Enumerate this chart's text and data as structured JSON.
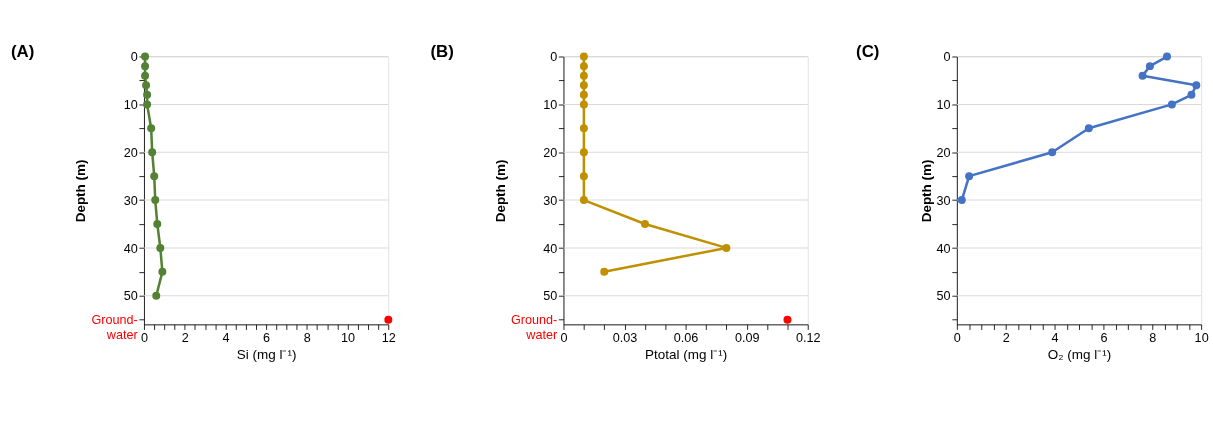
{
  "chart_data": [
    {
      "type": "line",
      "title": "(A)",
      "xlabel": "Si (mg l⁻¹)",
      "ylabel": "Depth (m)",
      "xlim": [
        0,
        12
      ],
      "xticks": [
        0,
        {
          "value": 0.5,
          "label": null
        },
        {
          "value": 1,
          "label": null
        },
        {
          "value": 1.5,
          "label": null
        },
        2,
        {
          "value": 2.5,
          "label": null
        },
        {
          "value": 3,
          "label": null
        },
        {
          "value": 3.5,
          "label": null
        },
        4,
        {
          "value": 4.5,
          "label": null
        },
        {
          "value": 5,
          "label": null
        },
        {
          "value": 5.5,
          "label": null
        },
        6,
        {
          "value": 6.5,
          "label": null
        },
        {
          "value": 7,
          "label": null
        },
        {
          "value": 7.5,
          "label": null
        },
        8,
        {
          "value": 8.5,
          "label": null
        },
        {
          "value": 9,
          "label": null
        },
        {
          "value": 9.5,
          "label": null
        },
        10,
        {
          "value": 10.5,
          "label": null
        },
        {
          "value": 11,
          "label": null
        },
        {
          "value": 11.5,
          "label": null
        },
        12
      ],
      "ylim": [
        56,
        0
      ],
      "yticks": [
        0,
        {
          "value": 5,
          "label": null
        },
        10,
        {
          "value": 15,
          "label": null
        },
        20,
        {
          "value": 25,
          "label": null
        },
        30,
        {
          "value": 35,
          "label": null
        },
        40,
        {
          "value": 45,
          "label": null
        },
        50,
        {
          "value": 55,
          "label": "Ground-water"
        }
      ],
      "grid": "y",
      "marker": "circle",
      "series": [
        {
          "color": "#548235",
          "x": [
            0.05,
            0.05,
            0.05,
            0.1,
            0.15,
            0.15,
            0.35,
            0.4,
            0.5,
            0.55,
            0.65,
            0.8,
            0.9,
            0.6
          ],
          "values": [
            0,
            2,
            4,
            6,
            8,
            10,
            15,
            20,
            25,
            30,
            35,
            40,
            45,
            50
          ]
        },
        {
          "type": "scatter",
          "color": "#ff0000",
          "x": [
            12
          ],
          "values": [
            55
          ]
        }
      ]
    },
    {
      "type": "line",
      "title": "(B)",
      "xlabel": "Ptotal (mg l⁻¹)",
      "ylabel": "Depth (m)",
      "xlim": [
        0,
        0.12
      ],
      "xticks": [
        0,
        {
          "value": 0.01,
          "label": null
        },
        {
          "value": 0.02,
          "label": null
        },
        0.03,
        {
          "value": 0.04,
          "label": null
        },
        {
          "value": 0.05,
          "label": null
        },
        0.06,
        {
          "value": 0.07,
          "label": null
        },
        {
          "value": 0.08,
          "label": null
        },
        0.09,
        {
          "value": 0.1,
          "label": null
        },
        {
          "value": 0.11,
          "label": null
        },
        0.12
      ],
      "ylim": [
        56,
        0
      ],
      "yticks": [
        0,
        {
          "value": 5,
          "label": null
        },
        10,
        {
          "value": 15,
          "label": null
        },
        20,
        {
          "value": 25,
          "label": null
        },
        30,
        {
          "value": 35,
          "label": null
        },
        40,
        {
          "value": 45,
          "label": null
        },
        50,
        {
          "value": 55,
          "label": "Ground-water"
        }
      ],
      "grid": "y",
      "marker": "circle",
      "series": [
        {
          "color": "#bf9000",
          "x": [
            0.01,
            0.01,
            0.01,
            0.01,
            0.01,
            0.01,
            0.01,
            0.01,
            0.01,
            0.01,
            0.04,
            0.08,
            0.02
          ],
          "values": [
            0,
            2,
            4,
            6,
            8,
            10,
            15,
            20,
            25,
            30,
            35,
            40,
            45
          ]
        },
        {
          "type": "scatter",
          "color": "#ff0000",
          "x": [
            0.11
          ],
          "values": [
            55
          ]
        }
      ]
    },
    {
      "type": "line",
      "title": "(C)",
      "xlabel": "O₂ (mg l⁻¹)",
      "ylabel": "Depth (m)",
      "xlim": [
        0,
        10
      ],
      "xticks": [
        0,
        {
          "value": 0.5,
          "label": null
        },
        {
          "value": 1,
          "label": null
        },
        {
          "value": 1.5,
          "label": null
        },
        2,
        {
          "value": 2.5,
          "label": null
        },
        {
          "value": 3,
          "label": null
        },
        {
          "value": 3.5,
          "label": null
        },
        4,
        {
          "value": 4.5,
          "label": null
        },
        {
          "value": 5,
          "label": null
        },
        {
          "value": 5.5,
          "label": null
        },
        6,
        {
          "value": 6.5,
          "label": null
        },
        {
          "value": 7,
          "label": null
        },
        {
          "value": 7.5,
          "label": null
        },
        8,
        {
          "value": 8.5,
          "label": null
        },
        {
          "value": 9,
          "label": null
        },
        {
          "value": 9.5,
          "label": null
        },
        10
      ],
      "ylim": [
        56,
        0
      ],
      "yticks": [
        0,
        {
          "value": 5,
          "label": null
        },
        10,
        {
          "value": 15,
          "label": null
        },
        20,
        {
          "value": 25,
          "label": null
        },
        30,
        {
          "value": 35,
          "label": null
        },
        40,
        {
          "value": 45,
          "label": null
        },
        50,
        {
          "value": 55,
          "label": null
        }
      ],
      "grid": "y",
      "marker": "circle",
      "series": [
        {
          "color": "#4472c4",
          "x": [
            8.6,
            7.9,
            7.6,
            9.8,
            9.6,
            8.8,
            5.4,
            3.9,
            0.5,
            0.2
          ],
          "values": [
            0,
            2,
            4,
            6,
            8,
            10,
            15,
            20,
            25,
            30
          ]
        }
      ]
    }
  ]
}
